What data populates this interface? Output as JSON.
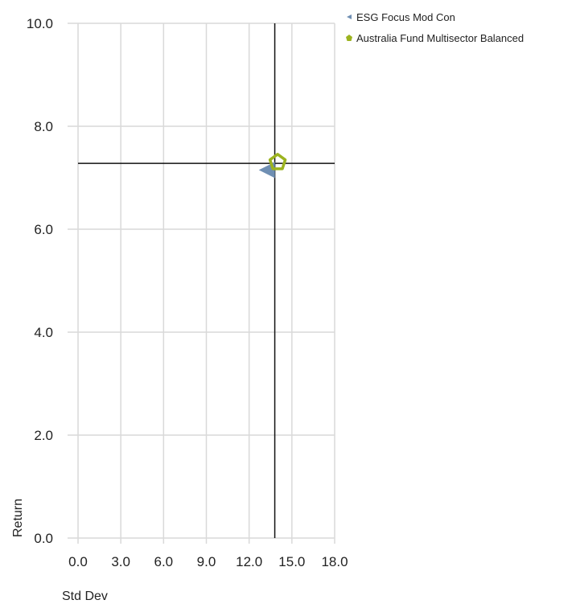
{
  "chart_data": {
    "type": "scatter",
    "xlabel": "Std Dev",
    "ylabel": "Return",
    "xlim": [
      0,
      18
    ],
    "ylim": [
      0,
      10
    ],
    "x_ticks": [
      "0.0",
      "3.0",
      "6.0",
      "9.0",
      "12.0",
      "15.0",
      "18.0"
    ],
    "y_ticks": [
      "0.0",
      "2.0",
      "4.0",
      "6.0",
      "8.0",
      "10.0"
    ],
    "grid": true,
    "legend_position": "top-right",
    "reference_lines": {
      "x": 13.8,
      "y": 7.28
    },
    "series": [
      {
        "name": "ESG Focus Mod Con",
        "marker": "triangle-left",
        "color": "#6f8fb3",
        "points": [
          {
            "x": 13.3,
            "y": 7.15
          }
        ]
      },
      {
        "name": "Australia Fund Multisector Balanced",
        "marker": "pentagon",
        "color": "#9cb31f",
        "points": [
          {
            "x": 14.0,
            "y": 7.3
          }
        ]
      }
    ]
  }
}
